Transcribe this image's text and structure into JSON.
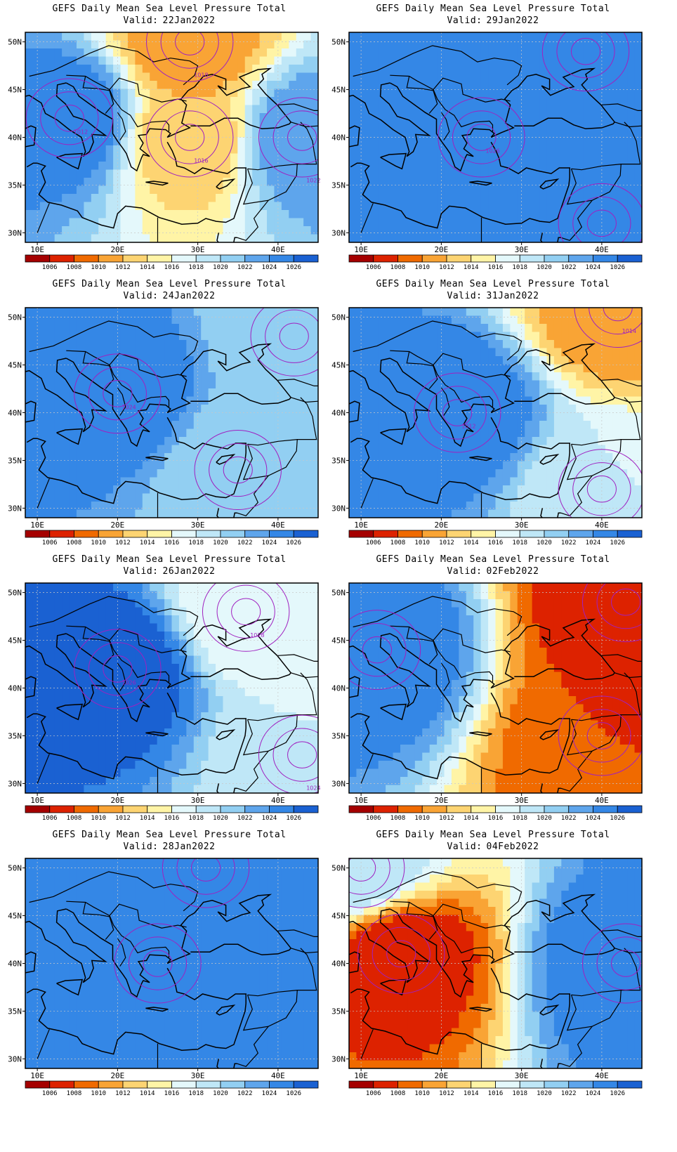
{
  "panel_title": "GEFS Daily Mean Sea Level Pressure Total",
  "valid_label": "Valid:",
  "x_ticks": [
    "10E",
    "20E",
    "30E",
    "40E"
  ],
  "y_ticks": [
    "50N",
    "45N",
    "40N",
    "35N",
    "30N"
  ],
  "colorbar": {
    "labels": [
      "1006",
      "1008",
      "1010",
      "1012",
      "1014",
      "1016",
      "1018",
      "1020",
      "1022",
      "1024",
      "1026"
    ],
    "colors": [
      "#a50000",
      "#dd2200",
      "#f06a00",
      "#f9a435",
      "#fdd472",
      "#fff4a6",
      "#e4f8fb",
      "#bfe7f7",
      "#92cff2",
      "#5ea5ec",
      "#3487e6",
      "#1a61d2"
    ]
  },
  "chart_data": [
    {
      "type": "map",
      "title": "GEFS Daily Mean Sea Level Pressure Total",
      "valid": "22Jan2022",
      "contour_labels": [
        "1012",
        "1016",
        "1018",
        "1022"
      ],
      "pressure_features": [
        {
          "kind": "high",
          "lon": 14,
          "lat": 42,
          "value": 1026
        },
        {
          "kind": "low",
          "lon": 29,
          "lat": 40,
          "value": 1012
        },
        {
          "kind": "low",
          "lon": 29,
          "lat": 50,
          "value": 1010
        },
        {
          "kind": "high",
          "lon": 43,
          "lat": 40,
          "value": 1024
        }
      ]
    },
    {
      "type": "map",
      "title": "GEFS Daily Mean Sea Level Pressure Total",
      "valid": "24Jan2022",
      "contour_labels": [
        "1024"
      ],
      "pressure_features": [
        {
          "kind": "high",
          "lon": 20,
          "lat": 42,
          "value": 1026
        },
        {
          "kind": "low",
          "lon": 42,
          "lat": 48,
          "value": 1020
        },
        {
          "kind": "low",
          "lon": 35,
          "lat": 34,
          "value": 1020
        }
      ]
    },
    {
      "type": "map",
      "title": "GEFS Daily Mean Sea Level Pressure Total",
      "valid": "26Jan2022",
      "contour_labels": [
        "1026",
        "1028",
        "1024"
      ],
      "pressure_features": [
        {
          "kind": "high",
          "lon": 20,
          "lat": 42,
          "value": 1028
        },
        {
          "kind": "low",
          "lon": 36,
          "lat": 48,
          "value": 1016
        },
        {
          "kind": "low",
          "lon": 43,
          "lat": 33,
          "value": 1018
        }
      ]
    },
    {
      "type": "map",
      "title": "GEFS Daily Mean Sea Level Pressure Total",
      "valid": "28Jan2022",
      "contour_labels": [],
      "pressure_features": [
        {
          "kind": "high",
          "lon": 25,
          "lat": 40,
          "value": 1026
        },
        {
          "kind": "low",
          "lon": 31,
          "lat": 50,
          "value": 1024
        }
      ]
    },
    {
      "type": "map",
      "title": "GEFS Daily Mean Sea Level Pressure Total",
      "valid": "29Jan2022",
      "contour_labels": [
        "1026"
      ],
      "pressure_features": [
        {
          "kind": "high",
          "lon": 25,
          "lat": 40,
          "value": 1026
        },
        {
          "kind": "low",
          "lon": 38,
          "lat": 49,
          "value": 1024
        },
        {
          "kind": "low",
          "lon": 40,
          "lat": 31,
          "value": 1024
        }
      ]
    },
    {
      "type": "map",
      "title": "GEFS Daily Mean Sea Level Pressure Total",
      "valid": "31Jan2022",
      "contour_labels": [
        "1012",
        "1014"
      ],
      "pressure_features": [
        {
          "kind": "high",
          "lon": 22,
          "lat": 40,
          "value": 1026
        },
        {
          "kind": "low",
          "lon": 42,
          "lat": 51,
          "value": 1010
        },
        {
          "kind": "low",
          "lon": 40,
          "lat": 32,
          "value": 1018
        }
      ]
    },
    {
      "type": "map",
      "title": "GEFS Daily Mean Sea Level Pressure Total",
      "valid": "02Feb2022",
      "contour_labels": [],
      "pressure_features": [
        {
          "kind": "high",
          "lon": 12,
          "lat": 44,
          "value": 1026
        },
        {
          "kind": "low",
          "lon": 40,
          "lat": 35,
          "value": 1008
        },
        {
          "kind": "low",
          "lon": 43,
          "lat": 49,
          "value": 1006
        }
      ]
    },
    {
      "type": "map",
      "title": "GEFS Daily Mean Sea Level Pressure Total",
      "valid": "04Feb2022",
      "contour_labels": [],
      "pressure_features": [
        {
          "kind": "low",
          "lon": 15,
          "lat": 41,
          "value": 1006
        },
        {
          "kind": "high",
          "lon": 43,
          "lat": 40,
          "value": 1026
        },
        {
          "kind": "high",
          "lon": 10,
          "lat": 50,
          "value": 1020
        }
      ]
    }
  ]
}
